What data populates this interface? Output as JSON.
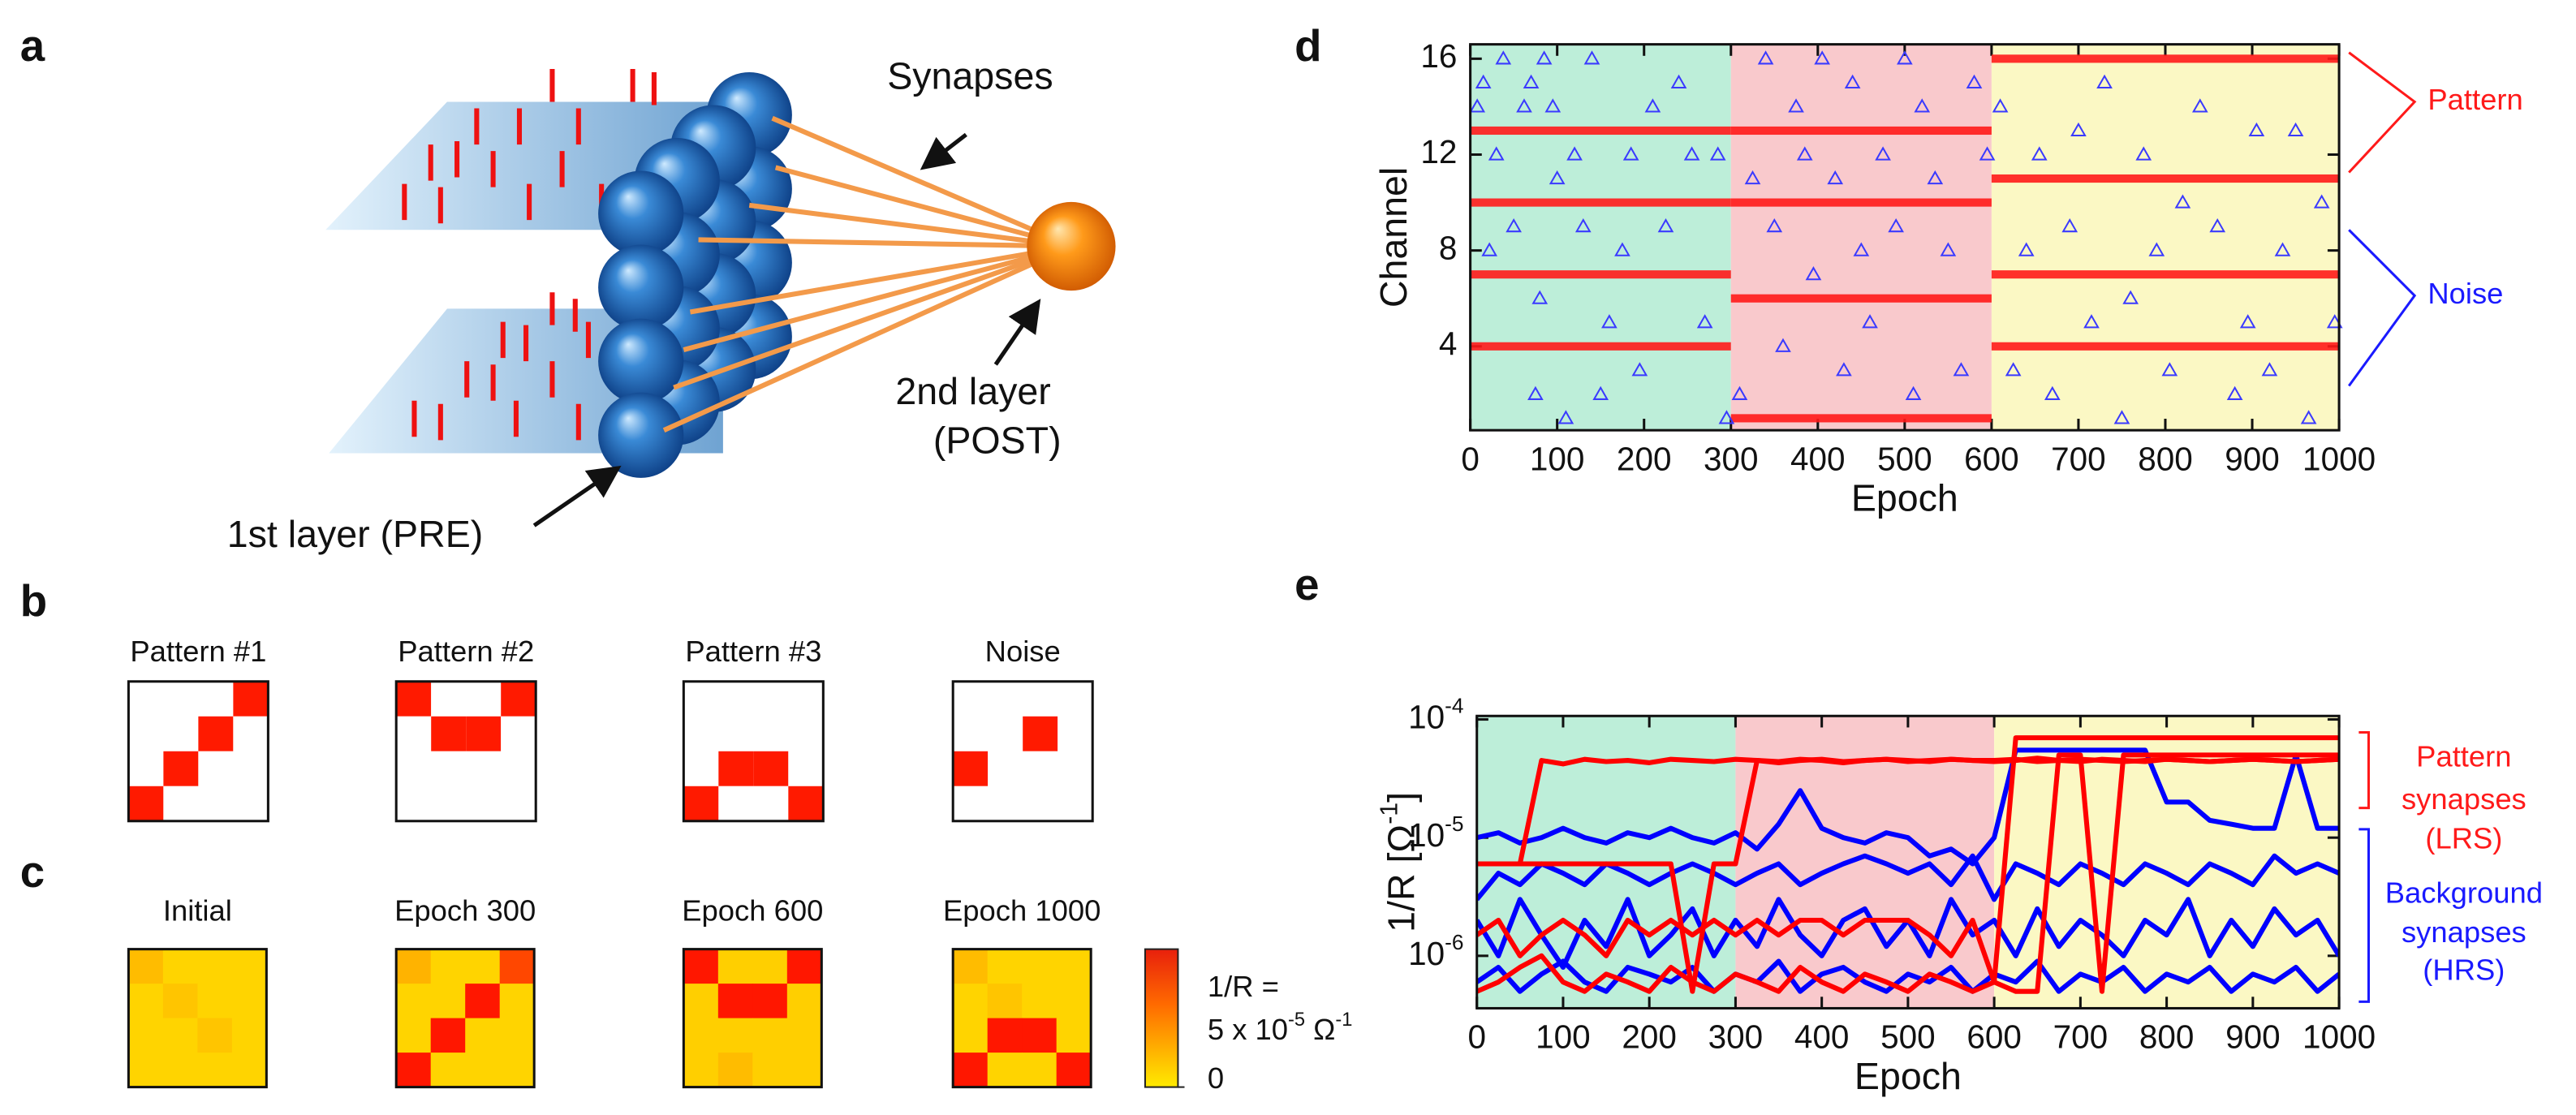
{
  "panel_labels": [
    "a",
    "b",
    "c",
    "d",
    "e"
  ],
  "diagram": {
    "synapses": "Synapses",
    "post": [
      "2nd layer",
      "(POST)"
    ],
    "pre": "1st layer (PRE)"
  },
  "patterns": [
    {
      "title": "Pattern #1",
      "cells": [
        [
          0,
          0,
          0,
          1
        ],
        [
          0,
          0,
          1,
          0
        ],
        [
          0,
          1,
          0,
          0
        ],
        [
          1,
          0,
          0,
          0
        ]
      ]
    },
    {
      "title": "Pattern #2",
      "cells": [
        [
          1,
          0,
          0,
          1
        ],
        [
          0,
          1,
          1,
          0
        ],
        [
          0,
          0,
          0,
          0
        ],
        [
          0,
          0,
          0,
          0
        ]
      ]
    },
    {
      "title": "Pattern #3",
      "cells": [
        [
          0,
          0,
          0,
          0
        ],
        [
          0,
          0,
          0,
          0
        ],
        [
          0,
          1,
          1,
          0
        ],
        [
          1,
          0,
          0,
          1
        ]
      ]
    },
    {
      "title": "Noise",
      "cells": [
        [
          0,
          0,
          0,
          0
        ],
        [
          0,
          0,
          1,
          0
        ],
        [
          1,
          0,
          0,
          0
        ],
        [
          0,
          0,
          0,
          0
        ]
      ]
    }
  ],
  "heatmaps": {
    "clim": [
      0,
      5e-05
    ],
    "colorbar_ticks": [
      0
    ],
    "colorbar_label": {
      "line1": "1/R =",
      "line2": [
        "5 x 10",
        "-5",
        " Ω",
        "-1"
      ]
    },
    "maps": [
      {
        "title": "Initial",
        "values": [
          [
            1e-05,
            5e-06,
            5e-06,
            5e-06
          ],
          [
            5e-06,
            8e-06,
            5e-06,
            5e-06
          ],
          [
            5e-06,
            5e-06,
            8e-06,
            5e-06
          ],
          [
            5e-06,
            5e-06,
            5e-06,
            5e-06
          ]
        ]
      },
      {
        "title": "Epoch 300",
        "values": [
          [
            1.2e-05,
            5e-06,
            5e-06,
            3.5e-05
          ],
          [
            5e-06,
            5e-06,
            4.5e-05,
            5e-06
          ],
          [
            5e-06,
            4.5e-05,
            5e-06,
            5e-06
          ],
          [
            4.5e-05,
            5e-06,
            5e-06,
            5e-06
          ]
        ]
      },
      {
        "title": "Epoch 600",
        "values": [
          [
            4.5e-05,
            6e-06,
            6e-06,
            4.5e-05
          ],
          [
            6e-06,
            4.5e-05,
            4.5e-05,
            6e-06
          ],
          [
            6e-06,
            6e-06,
            6e-06,
            6e-06
          ],
          [
            6e-06,
            1e-05,
            6e-06,
            6e-06
          ]
        ]
      },
      {
        "title": "Epoch 1000",
        "values": [
          [
            1e-05,
            5e-06,
            5e-06,
            5e-06
          ],
          [
            5e-06,
            8e-06,
            5e-06,
            5e-06
          ],
          [
            5e-06,
            4.5e-05,
            4.5e-05,
            5e-06
          ],
          [
            4.5e-05,
            5e-06,
            5e-06,
            4.5e-05
          ]
        ]
      }
    ]
  },
  "chart_data": [
    {
      "type": "raster",
      "xlabel": "Epoch",
      "ylabel": "Channel",
      "xlim": [
        0,
        1000
      ],
      "ylim": [
        0.5,
        16.6
      ],
      "xticks": [
        0,
        100,
        200,
        300,
        400,
        500,
        600,
        700,
        800,
        900,
        1000
      ],
      "yticks": [
        4,
        8,
        12,
        16
      ],
      "regions": [
        {
          "x": [
            0,
            300
          ],
          "color": "#bdeed9"
        },
        {
          "x": [
            300,
            600
          ],
          "color": "#f9c9cc"
        },
        {
          "x": [
            600,
            1000
          ],
          "color": "#fbf8c4"
        }
      ],
      "pattern_color": "#ff1a1a",
      "noise_color": "#3a3aff",
      "pattern_spikes": [
        {
          "channel": 4,
          "x": [
            0,
            300
          ]
        },
        {
          "channel": 7,
          "x": [
            0,
            300
          ]
        },
        {
          "channel": 10,
          "x": [
            0,
            300
          ]
        },
        {
          "channel": 13,
          "x": [
            0,
            300
          ]
        },
        {
          "channel": 1,
          "x": [
            300,
            600
          ]
        },
        {
          "channel": 6,
          "x": [
            300,
            600
          ]
        },
        {
          "channel": 10,
          "x": [
            300,
            600
          ]
        },
        {
          "channel": 13,
          "x": [
            300,
            600
          ]
        },
        {
          "channel": 4,
          "x": [
            600,
            1000
          ]
        },
        {
          "channel": 7,
          "x": [
            600,
            1000
          ]
        },
        {
          "channel": 11,
          "x": [
            600,
            1000
          ]
        },
        {
          "channel": 16,
          "x": [
            600,
            1000
          ]
        }
      ],
      "noise": {
        "x": [
          8,
          15,
          22,
          30,
          38,
          50,
          62,
          70,
          75,
          80,
          85,
          95,
          100,
          110,
          120,
          130,
          140,
          150,
          160,
          175,
          185,
          195,
          210,
          225,
          240,
          255,
          270,
          285,
          295,
          310,
          325,
          340,
          350,
          360,
          375,
          385,
          395,
          405,
          420,
          430,
          440,
          450,
          460,
          475,
          490,
          500,
          510,
          520,
          535,
          550,
          565,
          580,
          595,
          610,
          625,
          640,
          655,
          670,
          690,
          700,
          715,
          730,
          750,
          760,
          775,
          790,
          805,
          820,
          840,
          860,
          880,
          895,
          905,
          920,
          935,
          950,
          965,
          980,
          995
        ],
        "y": [
          14,
          15,
          8,
          12,
          16,
          9,
          14,
          15,
          2,
          6,
          16,
          14,
          11,
          1,
          12,
          9,
          16,
          2,
          5,
          8,
          12,
          3,
          14,
          9,
          15,
          12,
          5,
          12,
          1,
          2,
          11,
          16,
          9,
          4,
          14,
          12,
          7,
          16,
          11,
          3,
          15,
          8,
          5,
          12,
          9,
          16,
          2,
          14,
          11,
          8,
          3,
          15,
          12,
          14,
          3,
          8,
          12,
          2,
          9,
          13,
          5,
          15,
          1,
          6,
          12,
          8,
          3,
          10,
          14,
          9,
          2,
          5,
          13,
          3,
          8,
          13,
          1,
          10,
          5
        ]
      },
      "annotations": [
        {
          "text": "Pattern",
          "color": "#ff1a1a"
        },
        {
          "text": "Noise",
          "color": "#1a1aff"
        }
      ]
    },
    {
      "type": "line",
      "log_y": true,
      "xlabel": "Epoch",
      "ylabel": [
        "1/R [Ω",
        "-1",
        "]"
      ],
      "xlim": [
        0,
        1000
      ],
      "ylim": [
        3.6e-07,
        0.000107
      ],
      "xticks": [
        0,
        100,
        200,
        300,
        400,
        500,
        600,
        700,
        800,
        900,
        1000
      ],
      "yticks": [
        {
          "value": 0.0001,
          "label": "10",
          "sup": "-4"
        },
        {
          "value": 1e-05,
          "label": "10",
          "sup": "-5"
        },
        {
          "value": 1e-06,
          "label": "10",
          "sup": "-6"
        }
      ],
      "regions": [
        {
          "x": [
            0,
            300
          ],
          "color": "#bdeed9"
        },
        {
          "x": [
            300,
            600
          ],
          "color": "#f9c9cc"
        },
        {
          "x": [
            600,
            1000
          ],
          "color": "#fbf8c4"
        }
      ],
      "x": [
        0,
        25,
        50,
        75,
        100,
        125,
        150,
        175,
        200,
        225,
        250,
        275,
        300,
        325,
        350,
        375,
        400,
        425,
        450,
        475,
        500,
        525,
        550,
        575,
        600,
        625,
        650,
        675,
        700,
        725,
        750,
        775,
        800,
        825,
        850,
        875,
        900,
        925,
        950,
        975,
        1000
      ],
      "series": [
        {
          "color": "#0000ff",
          "values": [
            1e-05,
            1.1e-05,
            9e-06,
            1e-05,
            1.2e-05,
            1e-05,
            9e-06,
            1.1e-05,
            1e-05,
            1.2e-05,
            1e-05,
            9e-06,
            1.1e-05,
            8e-06,
            1.3e-05,
            2.5e-05,
            1.2e-05,
            1e-05,
            9e-06,
            1.1e-05,
            1e-05,
            7e-06,
            8e-06,
            6e-06,
            1e-05,
            5.5e-05,
            5.5e-05,
            5.5e-05,
            5.5e-05,
            5.5e-05,
            5.5e-05,
            5.5e-05,
            2e-05,
            2e-05,
            1.4e-05,
            1.3e-05,
            1.2e-05,
            1.2e-05,
            5e-05,
            1.2e-05,
            1.2e-05
          ]
        },
        {
          "color": "#0000ff",
          "values": [
            3e-06,
            5e-06,
            4e-06,
            6e-06,
            5e-06,
            4e-06,
            6e-06,
            5e-06,
            4e-06,
            5e-06,
            6e-06,
            5e-06,
            4e-06,
            5e-06,
            6e-06,
            4e-06,
            5e-06,
            6e-06,
            7e-06,
            6e-06,
            5e-06,
            6e-06,
            4e-06,
            7e-06,
            3e-06,
            6e-06,
            5e-06,
            4e-06,
            6e-06,
            5e-06,
            4e-06,
            6e-06,
            5e-06,
            4e-06,
            6e-06,
            5e-06,
            4e-06,
            7e-06,
            5e-06,
            6e-06,
            5e-06
          ]
        },
        {
          "color": "#0000ff",
          "values": [
            2e-06,
            1e-06,
            3e-06,
            1.5e-06,
            8e-07,
            2e-06,
            1.2e-06,
            3e-06,
            1e-06,
            1.5e-06,
            2.5e-06,
            1e-06,
            2e-06,
            1.2e-06,
            3e-06,
            1.5e-06,
            1e-06,
            2e-06,
            2.5e-06,
            1.2e-06,
            2e-06,
            1e-06,
            3e-06,
            1.5e-06,
            2e-06,
            1e-06,
            2.5e-06,
            1.2e-06,
            2e-06,
            1.5e-06,
            1e-06,
            2e-06,
            1.5e-06,
            3e-06,
            1e-06,
            2e-06,
            1.2e-06,
            2.5e-06,
            1.5e-06,
            2e-06,
            1e-06
          ]
        },
        {
          "color": "#0000ff",
          "values": [
            6e-07,
            8e-07,
            5e-07,
            7e-07,
            9e-07,
            6e-07,
            5e-07,
            8e-07,
            7e-07,
            6e-07,
            8e-07,
            5e-07,
            7e-07,
            6e-07,
            9e-07,
            5e-07,
            7e-07,
            8e-07,
            6e-07,
            5e-07,
            7e-07,
            6e-07,
            8e-07,
            5e-07,
            7e-07,
            6e-07,
            9e-07,
            5e-07,
            7e-07,
            6e-07,
            8e-07,
            5e-07,
            7e-07,
            6e-07,
            8e-07,
            5e-07,
            7e-07,
            6e-07,
            8e-07,
            5e-07,
            7e-07
          ]
        },
        {
          "color": "#ff0000",
          "values": [
            6e-06,
            6e-06,
            6e-06,
            4.5e-05,
            4.2e-05,
            4.6e-05,
            4.4e-05,
            4.5e-05,
            4.3e-05,
            4.6e-05,
            4.5e-05,
            4.4e-05,
            4.6e-05,
            4.5e-05,
            4.3e-05,
            4.5e-05,
            4.6e-05,
            4.4e-05,
            4.5e-05,
            4.6e-05,
            4.5e-05,
            4.4e-05,
            4.6e-05,
            4.5e-05,
            4.5e-05,
            4.6e-05,
            4.4e-05,
            4.5e-05,
            4.6e-05,
            4.5e-05,
            4.4e-05,
            4.5e-05,
            4.6e-05,
            4.5e-05,
            4.4e-05,
            4.5e-05,
            4.6e-05,
            4.5e-05,
            4.4e-05,
            4.5e-05,
            4.6e-05
          ]
        },
        {
          "color": "#ff0000",
          "values": [
            6e-06,
            6e-06,
            6e-06,
            6e-06,
            6e-06,
            6e-06,
            6e-06,
            6e-06,
            6e-06,
            6e-06,
            5e-07,
            6e-06,
            6e-06,
            4.5e-05,
            4.4e-05,
            4.6e-05,
            4.5e-05,
            4.3e-05,
            4.5e-05,
            4.6e-05,
            4.4e-05,
            4.5e-05,
            4.6e-05,
            4.5e-05,
            4.4e-05,
            4.5e-05,
            4.7e-05,
            4.5e-05,
            4.4e-05,
            4.6e-05,
            4.5e-05,
            4.4e-05,
            4.6e-05,
            4.5e-05,
            4.4e-05,
            4.5e-05,
            4.6e-05,
            4.5e-05,
            4.4e-05,
            4.5e-05,
            4.6e-05
          ]
        },
        {
          "color": "#ff0000",
          "values": [
            1.5e-06,
            2e-06,
            1e-06,
            1.5e-06,
            2e-06,
            1.5e-06,
            1e-06,
            2e-06,
            1.5e-06,
            2e-06,
            1.5e-06,
            2e-06,
            1.5e-06,
            2e-06,
            1.5e-06,
            2e-06,
            2e-06,
            1.5e-06,
            2e-06,
            2e-06,
            2e-06,
            1.5e-06,
            1e-06,
            2e-06,
            6e-07,
            7e-05,
            7e-05,
            7e-05,
            7e-05,
            7e-05,
            7e-05,
            7e-05,
            7e-05,
            7e-05,
            7e-05,
            7e-05,
            7e-05,
            7e-05,
            7e-05,
            7e-05,
            7e-05
          ]
        },
        {
          "color": "#ff0000",
          "values": [
            5e-07,
            6e-07,
            8e-07,
            1e-06,
            6e-07,
            5e-07,
            7e-07,
            6e-07,
            5e-07,
            8e-07,
            6e-07,
            5e-07,
            7e-07,
            6e-07,
            5e-07,
            8e-07,
            6e-07,
            5e-07,
            7e-07,
            6e-07,
            5e-07,
            7e-07,
            6e-07,
            5e-07,
            6e-07,
            5e-07,
            5e-07,
            5e-05,
            5e-05,
            5e-07,
            5e-05,
            5e-05,
            5e-05,
            5e-05,
            5e-05,
            5e-05,
            5e-05,
            5e-05,
            5e-05,
            5e-05,
            5e-05
          ]
        }
      ],
      "annotations": [
        {
          "lines": [
            "Pattern",
            "synapses",
            "(LRS)"
          ],
          "color": "#ff1a1a"
        },
        {
          "lines": [
            "Background",
            "synapses",
            "(HRS)"
          ],
          "color": "#1a1aff"
        }
      ]
    }
  ]
}
